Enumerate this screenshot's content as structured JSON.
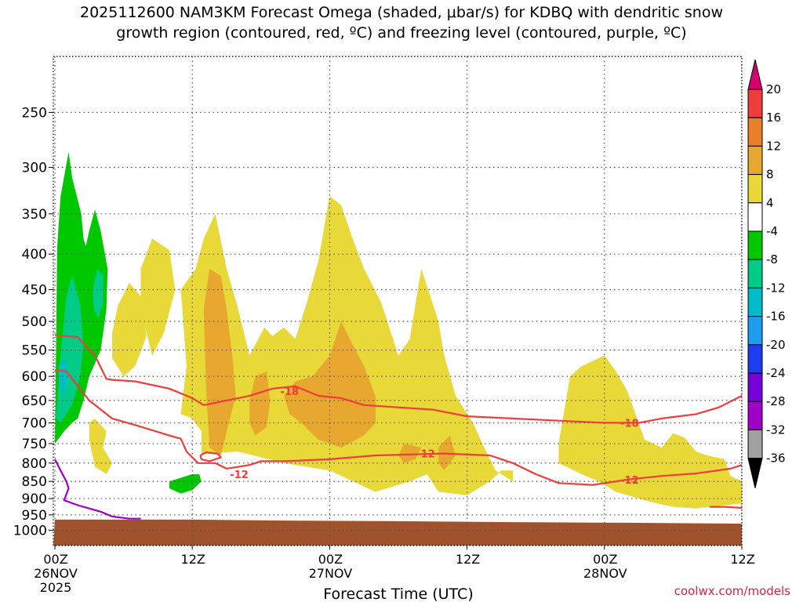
{
  "chart_data": {
    "type": "heatmap",
    "title": "2025112600 NAM3KM Forecast Omega (shaded, μbar/s) for KDBQ with dendritic snow",
    "subtitle": "growth region (contoured, red, ºC) and freezing level (contoured, purple, ºC)",
    "xlabel": "Forecast Time (UTC)",
    "ylabel": "",
    "x_range_hours": [
      0,
      60
    ],
    "y_range_hpa": [
      1050,
      200
    ],
    "y_ticks": [
      250,
      300,
      350,
      400,
      450,
      500,
      550,
      600,
      650,
      700,
      750,
      800,
      850,
      900,
      950,
      1000
    ],
    "x_ticks": [
      {
        "hour": 0,
        "lines": [
          "00Z",
          "26NOV",
          "2025"
        ]
      },
      {
        "hour": 12,
        "lines": [
          "12Z"
        ]
      },
      {
        "hour": 24,
        "lines": [
          "00Z",
          "27NOV"
        ]
      },
      {
        "hour": 36,
        "lines": [
          "12Z"
        ]
      },
      {
        "hour": 48,
        "lines": [
          "00Z",
          "28NOV"
        ]
      },
      {
        "hour": 60,
        "lines": [
          "12Z"
        ]
      }
    ],
    "grid": true,
    "colorbar": {
      "units": "μbar/s",
      "labels": [
        "20",
        "16",
        "12",
        "8",
        "4",
        "-4",
        "-8",
        "-12",
        "-16",
        "-20",
        "-24",
        "-28",
        "-32",
        "-36"
      ],
      "colors": [
        "#d4006e",
        "#f03c3c",
        "#e87f28",
        "#e8a830",
        "#e8d838",
        "#ffffff",
        "#00c800",
        "#00cc88",
        "#00bcc8",
        "#1e9cf0",
        "#1e3cf0",
        "#7800d8",
        "#a000c8",
        "#a0a0a0",
        "#000000"
      ]
    },
    "shaded_regions": [
      {
        "level": 4,
        "color": "#e8d838",
        "points": [
          [
            7.5,
            420
          ],
          [
            8.5,
            380
          ],
          [
            10,
            395
          ],
          [
            10.5,
            450
          ],
          [
            9.5,
            520
          ],
          [
            8.5,
            560
          ],
          [
            7.5,
            480
          ]
        ]
      },
      {
        "level": 4,
        "color": "#e8d838",
        "points": [
          [
            11,
            450
          ],
          [
            12.3,
            420
          ],
          [
            13,
            380
          ],
          [
            14,
            350
          ],
          [
            15,
            420
          ],
          [
            16,
            480
          ],
          [
            17,
            560
          ],
          [
            18.3,
            510
          ],
          [
            19,
            525
          ],
          [
            20,
            510
          ],
          [
            21,
            530
          ],
          [
            22,
            470
          ],
          [
            23,
            410
          ],
          [
            24,
            330
          ],
          [
            25,
            340
          ],
          [
            26,
            380
          ],
          [
            27,
            420
          ],
          [
            28.5,
            470
          ],
          [
            30,
            560
          ],
          [
            31,
            530
          ],
          [
            32,
            420
          ],
          [
            33.5,
            500
          ],
          [
            34,
            560
          ],
          [
            35,
            640
          ],
          [
            36.5,
            700
          ],
          [
            37.5,
            760
          ],
          [
            38.5,
            820
          ],
          [
            40,
            850
          ],
          [
            40,
            820
          ],
          [
            39,
            820
          ],
          [
            38,
            850
          ],
          [
            36,
            890
          ],
          [
            33.5,
            880
          ],
          [
            32.5,
            830
          ],
          [
            31,
            850
          ],
          [
            28,
            880
          ],
          [
            24,
            820
          ],
          [
            20,
            800
          ],
          [
            16,
            770
          ],
          [
            12.8,
            775
          ],
          [
            12.8,
            720
          ],
          [
            12,
            690
          ],
          [
            11,
            680
          ],
          [
            11.5,
            580
          ]
        ]
      },
      {
        "level": 4,
        "color": "#e8d838",
        "points": [
          [
            5,
            520
          ],
          [
            5.5,
            475
          ],
          [
            6.5,
            440
          ],
          [
            7.5,
            460
          ],
          [
            8,
            525
          ],
          [
            7,
            580
          ],
          [
            6,
            600
          ],
          [
            5,
            565
          ]
        ]
      },
      {
        "level": 4,
        "color": "#e8d838",
        "points": [
          [
            44,
            750
          ],
          [
            45,
            600
          ],
          [
            46,
            580
          ],
          [
            48,
            560
          ],
          [
            49,
            590
          ],
          [
            50,
            630
          ],
          [
            51.5,
            740
          ],
          [
            53,
            760
          ],
          [
            54,
            725
          ],
          [
            55,
            735
          ],
          [
            56,
            770
          ],
          [
            57,
            780
          ],
          [
            58.5,
            790
          ],
          [
            59,
            835
          ],
          [
            60,
            850
          ],
          [
            60,
            915
          ],
          [
            56,
            930
          ],
          [
            54,
            925
          ],
          [
            52,
            910
          ],
          [
            49,
            880
          ],
          [
            47.5,
            850
          ],
          [
            46,
            830
          ],
          [
            44,
            800
          ]
        ]
      },
      {
        "level": 4,
        "color": "#e8d838",
        "points": [
          [
            3,
            700
          ],
          [
            3.5,
            690
          ],
          [
            4.5,
            720
          ],
          [
            4.2,
            760
          ],
          [
            5,
            800
          ],
          [
            4.5,
            830
          ],
          [
            3.5,
            810
          ],
          [
            3,
            740
          ]
        ]
      },
      {
        "level": 8,
        "color": "#e8a830",
        "points": [
          [
            13,
            480
          ],
          [
            13.5,
            420
          ],
          [
            14.5,
            430
          ],
          [
            15,
            480
          ],
          [
            15.5,
            560
          ],
          [
            15.8,
            640
          ],
          [
            15.2,
            700
          ],
          [
            14.5,
            780
          ],
          [
            13.5,
            760
          ],
          [
            13.2,
            620
          ]
        ]
      },
      {
        "level": 8,
        "color": "#e8a830",
        "points": [
          [
            17,
            650
          ],
          [
            17.5,
            600
          ],
          [
            18.5,
            590
          ],
          [
            18.8,
            650
          ],
          [
            18.5,
            710
          ],
          [
            17.5,
            730
          ],
          [
            17,
            700
          ]
        ]
      },
      {
        "level": 8,
        "color": "#e8a830",
        "points": [
          [
            20,
            640
          ],
          [
            21,
            610
          ],
          [
            22.5,
            600
          ],
          [
            24,
            560
          ],
          [
            25,
            500
          ],
          [
            26,
            540
          ],
          [
            27,
            580
          ],
          [
            28,
            640
          ],
          [
            28,
            700
          ],
          [
            27,
            730
          ],
          [
            25,
            760
          ],
          [
            23,
            740
          ],
          [
            21.5,
            700
          ],
          [
            20.5,
            680
          ]
        ]
      },
      {
        "level": 8,
        "color": "#e8a830",
        "points": [
          [
            30,
            780
          ],
          [
            30.5,
            750
          ],
          [
            32,
            760
          ],
          [
            31.5,
            790
          ],
          [
            30.5,
            800
          ]
        ]
      },
      {
        "level": 8,
        "color": "#e8a830",
        "points": [
          [
            33.5,
            760
          ],
          [
            34.5,
            730
          ],
          [
            35,
            780
          ],
          [
            34,
            820
          ],
          [
            33.5,
            800
          ]
        ]
      },
      {
        "level": -4,
        "color": "#00c800",
        "points": [
          [
            0,
            750
          ],
          [
            0.2,
            390
          ],
          [
            0.5,
            330
          ],
          [
            1.2,
            285
          ],
          [
            1.5,
            310
          ],
          [
            2.3,
            350
          ],
          [
            2.5,
            380
          ],
          [
            2.7,
            390
          ],
          [
            3,
            370
          ],
          [
            3.5,
            345
          ],
          [
            4,
            370
          ],
          [
            4.6,
            420
          ],
          [
            4.5,
            480
          ],
          [
            4,
            550
          ],
          [
            3,
            600
          ],
          [
            2.5,
            650
          ],
          [
            2,
            690
          ],
          [
            1.5,
            700
          ],
          [
            0.8,
            720
          ]
        ]
      },
      {
        "level": -4,
        "color": "#00c800",
        "points": [
          [
            10,
            850
          ],
          [
            11,
            840
          ],
          [
            12,
            830
          ],
          [
            12.6,
            830
          ],
          [
            12.8,
            850
          ],
          [
            12,
            875
          ],
          [
            11,
            885
          ],
          [
            10,
            870
          ]
        ]
      },
      {
        "level": -8,
        "color": "#00cc88",
        "points": [
          [
            0.1,
            690
          ],
          [
            0.5,
            560
          ],
          [
            1,
            460
          ],
          [
            1.5,
            430
          ],
          [
            2.2,
            470
          ],
          [
            2.5,
            540
          ],
          [
            2.2,
            600
          ],
          [
            1.5,
            660
          ],
          [
            0.5,
            700
          ]
        ]
      },
      {
        "level": -8,
        "color": "#00cc88",
        "points": [
          [
            3.3,
            450
          ],
          [
            3.7,
            420
          ],
          [
            4.2,
            430
          ],
          [
            4.2,
            470
          ],
          [
            3.8,
            495
          ],
          [
            3.4,
            480
          ]
        ]
      },
      {
        "level": -12,
        "color": "#00bcc8",
        "points": [
          [
            0.3,
            580
          ],
          [
            0.9,
            565
          ],
          [
            1.1,
            600
          ],
          [
            0.8,
            640
          ],
          [
            0.4,
            620
          ]
        ]
      }
    ],
    "contours": [
      {
        "name": "-18",
        "color": "#f03c3c",
        "points": [
          [
            0,
            523
          ],
          [
            2,
            527
          ],
          [
            3.5,
            560
          ],
          [
            4.5,
            605
          ],
          [
            5,
            607
          ],
          [
            7,
            610
          ],
          [
            10,
            625
          ],
          [
            12,
            645
          ],
          [
            13,
            660
          ],
          [
            15,
            650
          ],
          [
            17,
            640
          ],
          [
            19,
            625
          ],
          [
            21,
            620
          ],
          [
            23,
            640
          ],
          [
            25,
            645
          ],
          [
            27,
            660
          ],
          [
            30,
            665
          ],
          [
            33,
            670
          ],
          [
            36,
            685
          ],
          [
            40,
            690
          ],
          [
            44,
            695
          ],
          [
            48,
            700
          ],
          [
            51,
            700
          ],
          [
            53,
            690
          ],
          [
            56,
            680
          ],
          [
            58,
            665
          ],
          [
            60,
            640
          ]
        ],
        "labels": [
          {
            "text": "-18",
            "hour": 20.5,
            "hpa": 630
          },
          {
            "text": "-18",
            "hour": 50.2,
            "hpa": 700
          }
        ]
      },
      {
        "name": "-12",
        "color": "#f03c3c",
        "points": [
          [
            0,
            588
          ],
          [
            1,
            590
          ],
          [
            3,
            650
          ],
          [
            5,
            690
          ],
          [
            7,
            705
          ],
          [
            10,
            730
          ],
          [
            11,
            738
          ],
          [
            11.5,
            770
          ],
          [
            12.5,
            800
          ],
          [
            14,
            800
          ],
          [
            15,
            815
          ],
          [
            17,
            805
          ],
          [
            18,
            795
          ],
          [
            20,
            795
          ],
          [
            24,
            790
          ],
          [
            28,
            780
          ],
          [
            34,
            775
          ],
          [
            38,
            780
          ],
          [
            40,
            800
          ],
          [
            42,
            830
          ],
          [
            44,
            855
          ],
          [
            47,
            860
          ],
          [
            50,
            845
          ],
          [
            53,
            835
          ],
          [
            56,
            828
          ],
          [
            59,
            815
          ],
          [
            60,
            805
          ]
        ],
        "labels": [
          {
            "text": "-12",
            "hour": 16.1,
            "hpa": 830
          },
          {
            "text": "-12",
            "hour": 32.4,
            "hpa": 775
          },
          {
            "text": "-12",
            "hour": 50.2,
            "hpa": 845
          }
        ]
      },
      {
        "name": "-12 small loop",
        "color": "#f03c3c",
        "points": [
          [
            12.7,
            780
          ],
          [
            13.2,
            772
          ],
          [
            14.2,
            775
          ],
          [
            14.5,
            785
          ],
          [
            13.5,
            795
          ],
          [
            12.8,
            790
          ],
          [
            12.7,
            780
          ]
        ],
        "labels": []
      },
      {
        "name": "-12 edge",
        "color": "#f03c3c",
        "points": [
          [
            57.2,
            925
          ],
          [
            58.5,
            925
          ],
          [
            60,
            928
          ]
        ],
        "labels": []
      },
      {
        "name": "freezing level 0",
        "color": "#9a00c8",
        "points": [
          [
            0,
            790
          ],
          [
            0.5,
            820
          ],
          [
            1,
            850
          ],
          [
            1.2,
            870
          ],
          [
            0.8,
            905
          ],
          [
            2,
            920
          ],
          [
            4,
            940
          ],
          [
            5,
            955
          ],
          [
            6.5,
            962
          ],
          [
            7.5,
            962
          ]
        ],
        "labels": []
      }
    ],
    "terrain": {
      "color": "#a0522d",
      "surface_hpa": [
        [
          0,
          965
        ],
        [
          12,
          965
        ],
        [
          20,
          968
        ],
        [
          30,
          970
        ],
        [
          40,
          973
        ],
        [
          50,
          975
        ],
        [
          60,
          978
        ]
      ]
    }
  },
  "credit": "coolwx.com/models"
}
